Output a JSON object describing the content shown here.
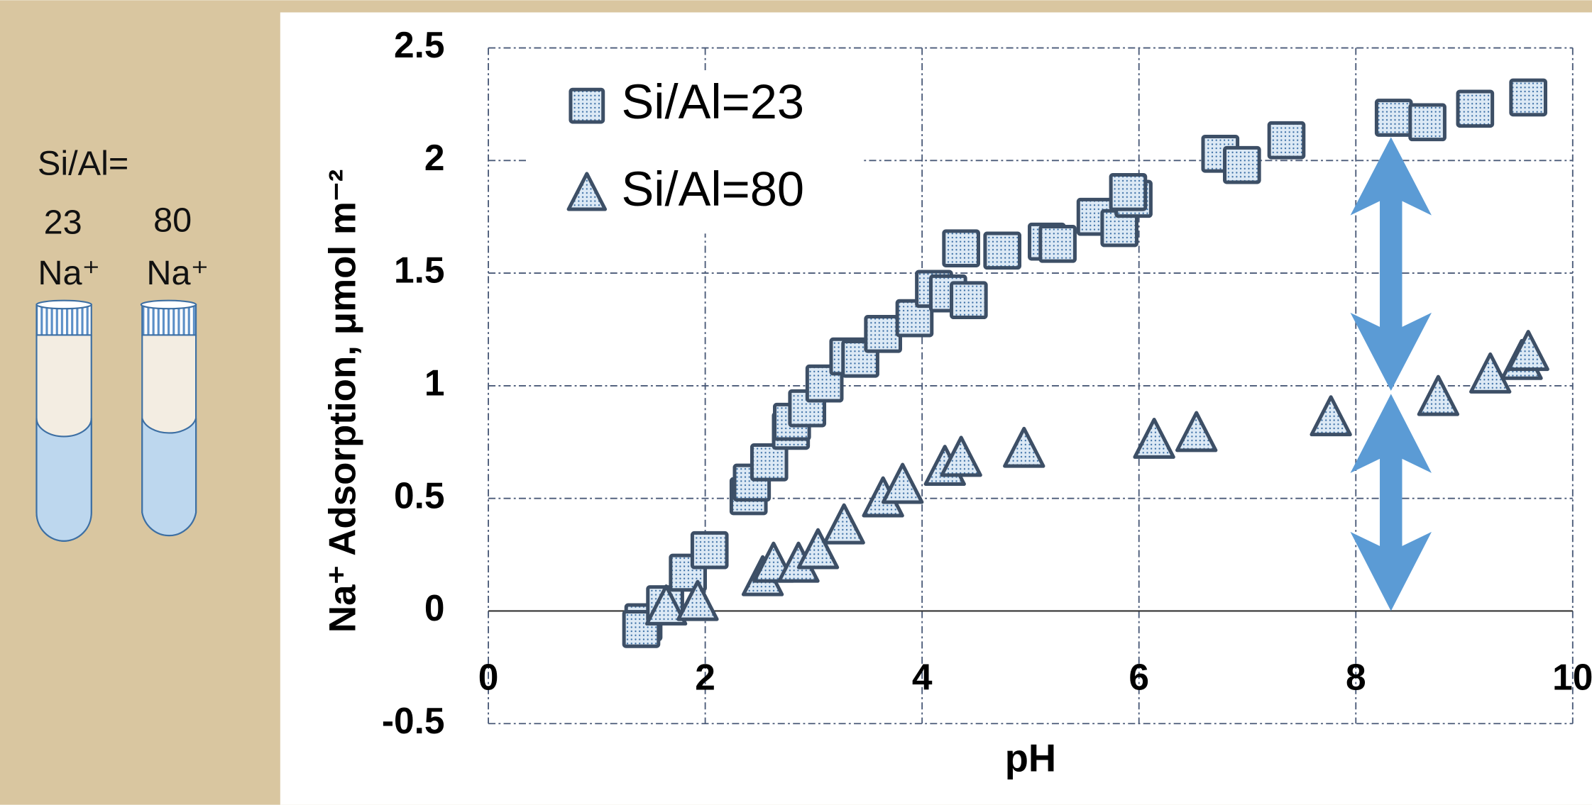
{
  "side_panel": {
    "label": "Si/Al=",
    "tubes": [
      {
        "ratio": "23",
        "ion": "Na⁺"
      },
      {
        "ratio": "80",
        "ion": "Na⁺"
      }
    ]
  },
  "chart_data": {
    "type": "scatter",
    "x_label": "pH",
    "y_label": "Na⁺ Adsorption, μmol m⁻²",
    "xlim": [
      0,
      10
    ],
    "xticks": [
      0,
      2,
      4,
      6,
      8,
      10
    ],
    "ylim": [
      -0.5,
      2.5
    ],
    "yticks": [
      -0.5,
      0,
      0.5,
      1,
      1.5,
      2,
      2.5
    ],
    "grid": true,
    "legend": "top-left",
    "series": [
      {
        "name": "Si/Al=23",
        "marker": "square",
        "color": "#dce9f5",
        "x": [
          1.43,
          1.41,
          1.63,
          1.84,
          2.04,
          2.4,
          2.43,
          2.59,
          2.79,
          2.8,
          2.94,
          3.1,
          3.32,
          3.43,
          3.64,
          3.93,
          4.11,
          4.24,
          4.43,
          4.36,
          4.74,
          5.15,
          5.25,
          5.6,
          5.82,
          5.95,
          5.9,
          6.75,
          6.95,
          7.36,
          8.35,
          8.66,
          9.1,
          9.59
        ],
        "values": [
          -0.05,
          -0.08,
          0.03,
          0.17,
          0.27,
          0.51,
          0.57,
          0.66,
          0.8,
          0.84,
          0.9,
          1.01,
          1.13,
          1.12,
          1.23,
          1.3,
          1.43,
          1.41,
          1.38,
          1.61,
          1.6,
          1.64,
          1.63,
          1.75,
          1.7,
          1.83,
          1.86,
          2.03,
          1.98,
          2.09,
          2.19,
          2.17,
          2.23,
          2.28
        ]
      },
      {
        "name": "Si/Al=80",
        "marker": "triangle",
        "color": "#dce9f5",
        "x": [
          1.64,
          1.93,
          2.53,
          2.63,
          2.86,
          3.04,
          3.28,
          3.64,
          3.82,
          4.21,
          4.36,
          4.94,
          6.14,
          6.53,
          7.77,
          8.76,
          9.24,
          9.53,
          9.59
        ],
        "values": [
          0.02,
          0.04,
          0.15,
          0.21,
          0.21,
          0.27,
          0.38,
          0.5,
          0.56,
          0.64,
          0.68,
          0.72,
          0.76,
          0.79,
          0.86,
          0.95,
          1.05,
          1.11,
          1.15
        ]
      }
    ]
  }
}
